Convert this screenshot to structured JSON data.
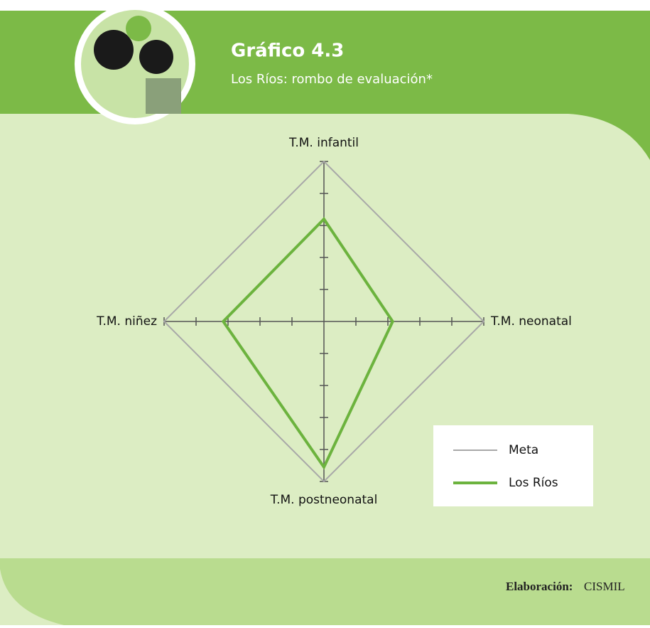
{
  "chart_data": {
    "type": "radar",
    "title": "Gráfico 4.3",
    "subtitle": "Los Ríos: rombo de evaluación*",
    "categories": [
      "T.M. infantil",
      "T.M. neonatal",
      "T.M. postneonatal",
      "T.M. niñez"
    ],
    "series": [
      {
        "name": "Meta",
        "color": "#a8a8a8",
        "values": [
          1,
          1,
          1,
          1
        ]
      },
      {
        "name": "Los Ríos",
        "color": "#6cb33e",
        "values": [
          0.64,
          0.43,
          0.91,
          0.63
        ]
      }
    ],
    "rlim": [
      0,
      1
    ],
    "rticks": [
      0,
      0.2,
      0.4,
      0.6,
      0.8,
      1
    ],
    "legend": "lower right",
    "source_label": "Elaboración:",
    "source": "CISMIL"
  }
}
